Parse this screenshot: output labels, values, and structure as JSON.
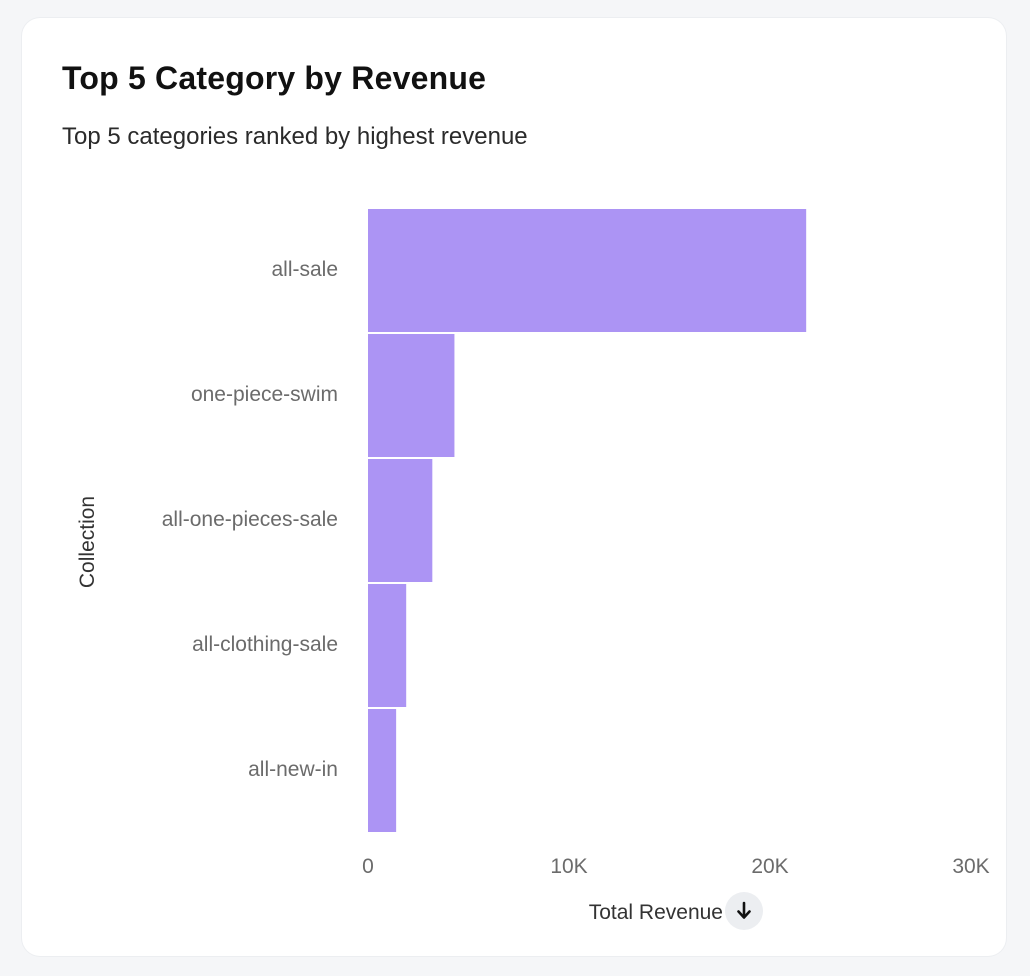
{
  "card": {
    "title": "Top 5 Category by Revenue",
    "subtitle": "Top 5 categories ranked by highest revenue"
  },
  "chart_data": {
    "type": "bar",
    "orientation": "horizontal",
    "title": "Top 5 Category by Revenue",
    "subtitle": "Top 5 categories ranked by highest revenue",
    "categories": [
      "all-sale",
      "one-piece-swim",
      "all-one-pieces-sale",
      "all-clothing-sale",
      "all-new-in"
    ],
    "values": [
      21800,
      4300,
      3200,
      1900,
      1400
    ],
    "xlabel": "Total Revenue",
    "ylabel": "Collection",
    "xlim": [
      0,
      30000
    ],
    "xticks": [
      {
        "value": 0,
        "label": "0"
      },
      {
        "value": 10000,
        "label": "10K"
      },
      {
        "value": 20000,
        "label": "20K"
      },
      {
        "value": 30000,
        "label": "30K"
      }
    ],
    "bar_color": "#ac94f4",
    "grid": false,
    "sort": "descending"
  },
  "icons": {
    "sort": "arrow-down-icon"
  }
}
